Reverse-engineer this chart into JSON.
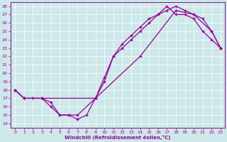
{
  "xlabel": "Windchill (Refroidissement éolien,°C)",
  "background_color": "#cce8e8",
  "line_color": "#990099",
  "grid_color": "#ffffff",
  "xlim": [
    -0.5,
    23.5
  ],
  "ylim": [
    13.5,
    28.5
  ],
  "xticks": [
    0,
    1,
    2,
    3,
    4,
    5,
    6,
    7,
    8,
    9,
    10,
    11,
    12,
    13,
    14,
    15,
    16,
    17,
    18,
    19,
    20,
    21,
    22,
    23
  ],
  "yticks": [
    14,
    15,
    16,
    17,
    18,
    19,
    20,
    21,
    22,
    23,
    24,
    25,
    26,
    27,
    28
  ],
  "series": [
    {
      "x": [
        0,
        1,
        2,
        3,
        4,
        5,
        6,
        7,
        8,
        9,
        10,
        11,
        12,
        13,
        14,
        15,
        16,
        17,
        18,
        19,
        20,
        21,
        22,
        23
      ],
      "y": [
        18,
        17,
        17,
        17,
        16,
        15,
        15,
        14.5,
        15,
        17,
        19,
        22,
        23,
        24,
        25,
        26,
        27,
        28,
        27,
        27,
        26.5,
        25,
        24,
        23
      ]
    },
    {
      "x": [
        0,
        1,
        3,
        4,
        5,
        6,
        7,
        9,
        10,
        11,
        12,
        13,
        14,
        15,
        16,
        17,
        18,
        19,
        20,
        21,
        22,
        23
      ],
      "y": [
        18,
        17,
        17,
        16.5,
        15,
        15,
        15,
        17,
        19.5,
        22,
        23.5,
        24.5,
        25.5,
        26.5,
        27,
        27.5,
        28,
        27.5,
        27,
        26.5,
        25,
        23
      ]
    },
    {
      "x": [
        0,
        1,
        3,
        9,
        14,
        18,
        20,
        22,
        23
      ],
      "y": [
        18,
        17,
        17,
        17,
        22,
        27.5,
        27,
        25,
        23
      ]
    }
  ]
}
